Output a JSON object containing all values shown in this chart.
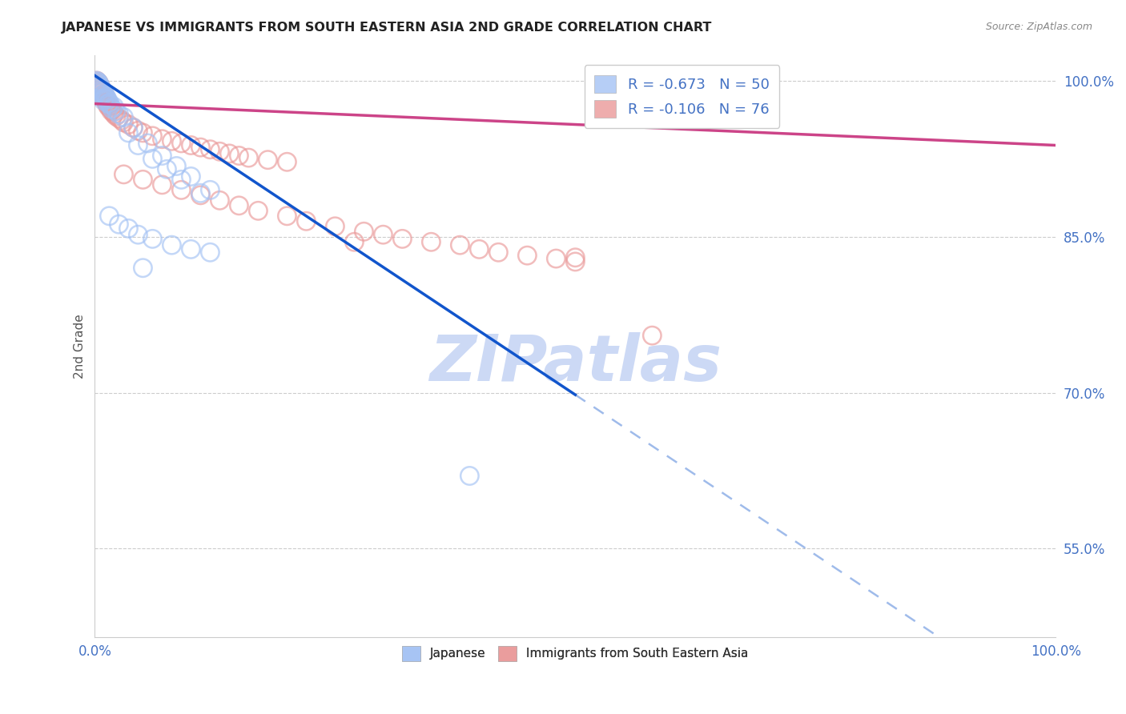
{
  "title": "JAPANESE VS IMMIGRANTS FROM SOUTH EASTERN ASIA 2ND GRADE CORRELATION CHART",
  "source": "Source: ZipAtlas.com",
  "ylabel": "2nd Grade",
  "xlim": [
    0.0,
    1.0
  ],
  "ylim": [
    0.465,
    1.025
  ],
  "yticks": [
    0.55,
    0.7,
    0.85,
    1.0
  ],
  "ytick_labels": [
    "55.0%",
    "70.0%",
    "85.0%",
    "100.0%"
  ],
  "legend_r1": "-0.673",
  "legend_n1": "50",
  "legend_r2": "-0.106",
  "legend_n2": "76",
  "color_blue": "#a4c2f4",
  "color_pink": "#ea9999",
  "color_line_blue": "#1155cc",
  "color_line_pink": "#cc4488",
  "color_watermark": "#ccd9f5",
  "color_axis_labels": "#4472c4",
  "blue_line_solid": [
    [
      0.0,
      1.005
    ],
    [
      0.5,
      0.698
    ]
  ],
  "blue_line_dashed": [
    [
      0.5,
      0.698
    ],
    [
      1.0,
      0.39
    ]
  ],
  "pink_line": [
    [
      0.0,
      0.978
    ],
    [
      1.0,
      0.938
    ]
  ],
  "blue_points": [
    [
      0.002,
      1.0
    ],
    [
      0.003,
      0.999
    ],
    [
      0.004,
      0.998
    ],
    [
      0.003,
      0.997
    ],
    [
      0.005,
      0.996
    ],
    [
      0.004,
      0.995
    ],
    [
      0.006,
      0.994
    ],
    [
      0.005,
      0.993
    ],
    [
      0.007,
      0.992
    ],
    [
      0.006,
      0.991
    ],
    [
      0.008,
      0.99
    ],
    [
      0.007,
      0.989
    ],
    [
      0.009,
      0.988
    ],
    [
      0.01,
      0.987
    ],
    [
      0.008,
      0.986
    ],
    [
      0.011,
      0.985
    ],
    [
      0.012,
      0.984
    ],
    [
      0.01,
      0.983
    ],
    [
      0.013,
      0.982
    ],
    [
      0.009,
      0.981
    ],
    [
      0.015,
      0.979
    ],
    [
      0.014,
      0.978
    ],
    [
      0.016,
      0.977
    ],
    [
      0.02,
      0.975
    ],
    [
      0.018,
      0.973
    ],
    [
      0.022,
      0.971
    ],
    [
      0.025,
      0.968
    ],
    [
      0.03,
      0.965
    ],
    [
      0.04,
      0.955
    ],
    [
      0.035,
      0.95
    ],
    [
      0.055,
      0.94
    ],
    [
      0.045,
      0.938
    ],
    [
      0.07,
      0.928
    ],
    [
      0.06,
      0.925
    ],
    [
      0.085,
      0.918
    ],
    [
      0.075,
      0.915
    ],
    [
      0.1,
      0.908
    ],
    [
      0.09,
      0.905
    ],
    [
      0.12,
      0.895
    ],
    [
      0.11,
      0.892
    ],
    [
      0.015,
      0.87
    ],
    [
      0.025,
      0.862
    ],
    [
      0.035,
      0.858
    ],
    [
      0.045,
      0.852
    ],
    [
      0.06,
      0.848
    ],
    [
      0.08,
      0.842
    ],
    [
      0.1,
      0.838
    ],
    [
      0.12,
      0.835
    ],
    [
      0.05,
      0.82
    ],
    [
      0.39,
      0.62
    ]
  ],
  "pink_points": [
    [
      0.002,
      1.0
    ],
    [
      0.003,
      0.999
    ],
    [
      0.004,
      0.998
    ],
    [
      0.003,
      0.997
    ],
    [
      0.005,
      0.996
    ],
    [
      0.004,
      0.995
    ],
    [
      0.006,
      0.994
    ],
    [
      0.005,
      0.993
    ],
    [
      0.007,
      0.992
    ],
    [
      0.006,
      0.991
    ],
    [
      0.008,
      0.99
    ],
    [
      0.007,
      0.989
    ],
    [
      0.009,
      0.988
    ],
    [
      0.01,
      0.987
    ],
    [
      0.008,
      0.986
    ],
    [
      0.009,
      0.985
    ],
    [
      0.011,
      0.984
    ],
    [
      0.01,
      0.983
    ],
    [
      0.012,
      0.982
    ],
    [
      0.011,
      0.981
    ],
    [
      0.013,
      0.98
    ],
    [
      0.012,
      0.979
    ],
    [
      0.014,
      0.978
    ],
    [
      0.013,
      0.977
    ],
    [
      0.015,
      0.976
    ],
    [
      0.014,
      0.975
    ],
    [
      0.016,
      0.974
    ],
    [
      0.018,
      0.972
    ],
    [
      0.017,
      0.971
    ],
    [
      0.019,
      0.97
    ],
    [
      0.02,
      0.968
    ],
    [
      0.022,
      0.966
    ],
    [
      0.025,
      0.964
    ],
    [
      0.028,
      0.962
    ],
    [
      0.03,
      0.96
    ],
    [
      0.035,
      0.958
    ],
    [
      0.04,
      0.955
    ],
    [
      0.045,
      0.952
    ],
    [
      0.05,
      0.95
    ],
    [
      0.06,
      0.947
    ],
    [
      0.07,
      0.944
    ],
    [
      0.08,
      0.942
    ],
    [
      0.09,
      0.94
    ],
    [
      0.1,
      0.938
    ],
    [
      0.11,
      0.936
    ],
    [
      0.12,
      0.934
    ],
    [
      0.13,
      0.932
    ],
    [
      0.14,
      0.93
    ],
    [
      0.15,
      0.928
    ],
    [
      0.16,
      0.926
    ],
    [
      0.18,
      0.924
    ],
    [
      0.2,
      0.922
    ],
    [
      0.03,
      0.91
    ],
    [
      0.05,
      0.905
    ],
    [
      0.07,
      0.9
    ],
    [
      0.09,
      0.895
    ],
    [
      0.11,
      0.89
    ],
    [
      0.13,
      0.885
    ],
    [
      0.15,
      0.88
    ],
    [
      0.17,
      0.875
    ],
    [
      0.2,
      0.87
    ],
    [
      0.22,
      0.865
    ],
    [
      0.25,
      0.86
    ],
    [
      0.28,
      0.855
    ],
    [
      0.3,
      0.852
    ],
    [
      0.32,
      0.848
    ],
    [
      0.35,
      0.845
    ],
    [
      0.38,
      0.842
    ],
    [
      0.4,
      0.838
    ],
    [
      0.42,
      0.835
    ],
    [
      0.45,
      0.832
    ],
    [
      0.48,
      0.829
    ],
    [
      0.5,
      0.826
    ],
    [
      0.27,
      0.845
    ],
    [
      0.58,
      0.755
    ],
    [
      0.5,
      0.83
    ]
  ]
}
